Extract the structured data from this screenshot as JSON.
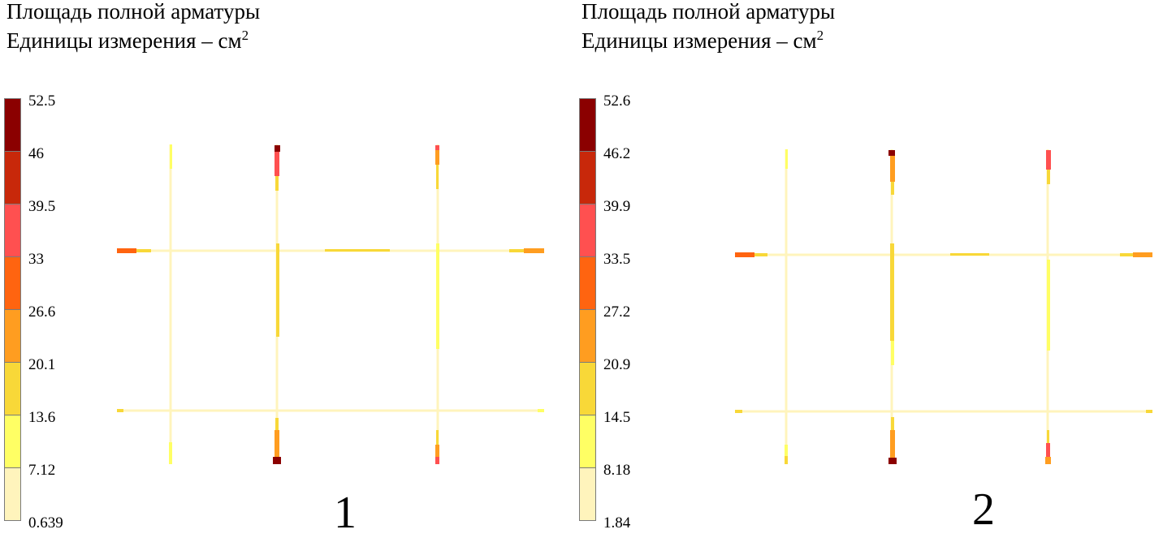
{
  "panels": [
    {
      "title": {
        "line1": "Площадь полной арматуры",
        "line2": "Единицы измерения – см",
        "unit_power": "2"
      },
      "scale_labels": [
        "52.5",
        "46",
        "39.5",
        "33",
        "26.6",
        "20.1",
        "13.6",
        "7.12",
        "0.639"
      ],
      "scale_colors": [
        "#8b0000",
        "#c8280a",
        "#ff5050",
        "#ff6410",
        "#ff9d20",
        "#f8d838",
        "#ffff64",
        "#fff4bc"
      ],
      "number": "1"
    },
    {
      "title": {
        "line1": "Площадь полной арматуры",
        "line2": "Единицы измерения – см",
        "unit_power": "2"
      },
      "scale_labels": [
        "52.6",
        "46.2",
        "39.9",
        "33.5",
        "27.2",
        "20.9",
        "14.5",
        "8.18",
        "1.84"
      ],
      "scale_colors": [
        "#8b0000",
        "#c8280a",
        "#ff5050",
        "#ff6410",
        "#ff9d20",
        "#f8d838",
        "#ffff64",
        "#fff4bc"
      ],
      "number": "2"
    }
  ]
}
